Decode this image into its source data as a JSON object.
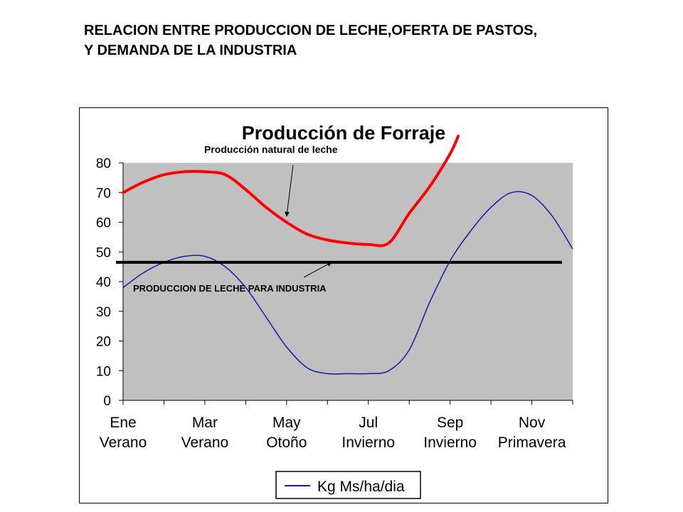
{
  "page": {
    "heading_line1": "RELACION ENTRE PRODUCCION DE LECHE,OFERTA DE PASTOS,",
    "heading_line2": "Y DEMANDA DE LA INDUSTRIA"
  },
  "chart_data": {
    "type": "line",
    "title": "Producción de Forraje",
    "ylim": [
      0,
      80
    ],
    "yticks": [
      "0",
      "10",
      "20",
      "30",
      "40",
      "50",
      "60",
      "70",
      "80"
    ],
    "categories": [
      {
        "month": "Ene",
        "season": "Verano"
      },
      {
        "month": "Mar",
        "season": "Verano"
      },
      {
        "month": "May",
        "season": "Otoño"
      },
      {
        "month": "Jul",
        "season": "Invierno"
      },
      {
        "month": "Sep",
        "season": "Invierno"
      },
      {
        "month": "Nov",
        "season": "Primavera"
      }
    ],
    "series": [
      {
        "name": "Kg Ms/ha/dia",
        "color": "#1a1aa6",
        "x": [
          0,
          0.5,
          1,
          1.5,
          2,
          2.5,
          3,
          3.5,
          4,
          4.5,
          5,
          5.5,
          6,
          6.5,
          7,
          7.5,
          8,
          8.5,
          9,
          9.5,
          10,
          10.5,
          11
        ],
        "values": [
          38,
          43,
          46.5,
          48.5,
          48.5,
          45,
          38,
          28,
          18,
          11,
          9,
          9,
          9,
          10,
          17,
          33,
          47,
          57,
          65,
          70,
          69,
          62,
          51
        ]
      },
      {
        "name": "Producción natural de leche",
        "color": "#ff0000",
        "x": [
          0,
          0.5,
          1,
          1.5,
          2,
          2.5,
          3,
          3.5,
          4,
          4.5,
          5,
          5.5,
          6,
          6.5,
          7,
          7.5,
          8,
          8.2
        ],
        "values": [
          70,
          73.5,
          76,
          77,
          77,
          76,
          71,
          65,
          60,
          56,
          54,
          53,
          52.5,
          53,
          63,
          72,
          83,
          89
        ]
      }
    ],
    "reference_line": {
      "label": "PRODUCCION DE LECHE PARA INDUSTRIA",
      "value": 46.5,
      "color": "#000000"
    },
    "annotations": [
      {
        "text": "Producción natural de leche",
        "target_series": "Producción natural de leche",
        "target_x": 4.0,
        "target_y": 62
      },
      {
        "text": "PRODUCCION DE LECHE PARA INDUSTRIA",
        "target": "reference_line",
        "target_x": 5.1,
        "target_y": 46.5
      }
    ],
    "plot_background": "#c0c0c0",
    "grid": false,
    "legend": {
      "position": "bottom",
      "entries": [
        "Kg Ms/ha/dia"
      ]
    }
  }
}
